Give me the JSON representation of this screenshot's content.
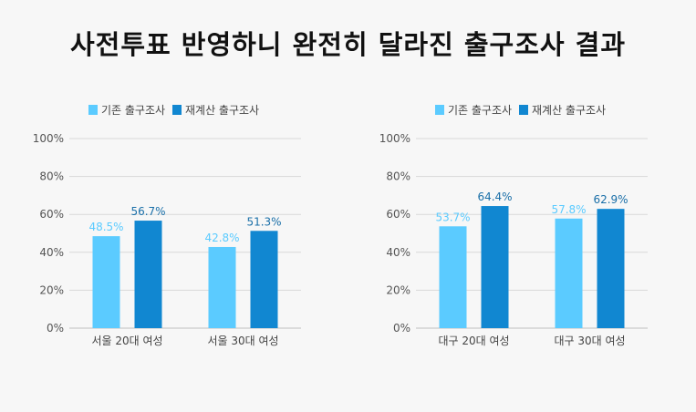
{
  "title": "사전투표 반영하니 완전히 달라진 출구조사 결과",
  "colors": {
    "original": "#5bcbff",
    "recount": "#1187d1"
  },
  "chart_data": [
    {
      "type": "bar",
      "categories": [
        "서울 20대 여성",
        "서울 30대 여성"
      ],
      "series": [
        {
          "name": "기존 출구조사",
          "values": [
            48.5,
            42.8
          ],
          "labels": [
            "48.5%",
            "42.8%"
          ]
        },
        {
          "name": "재계산 출구조사",
          "values": [
            56.7,
            51.3
          ],
          "labels": [
            "56.7%",
            "51.3%"
          ]
        }
      ],
      "yticks": [
        "0%",
        "20%",
        "40%",
        "60%",
        "80%",
        "100%"
      ],
      "ylim": [
        0,
        100
      ],
      "legend": "top-left",
      "grid": true
    },
    {
      "type": "bar",
      "categories": [
        "대구 20대 여성",
        "대구 30대 여성"
      ],
      "series": [
        {
          "name": "기존 출구조사",
          "values": [
            53.7,
            57.8
          ],
          "labels": [
            "53.7%",
            "57.8%"
          ]
        },
        {
          "name": "재계산 출구조사",
          "values": [
            64.4,
            62.9
          ],
          "labels": [
            "64.4%",
            "62.9%"
          ]
        }
      ],
      "yticks": [
        "0%",
        "20%",
        "40%",
        "60%",
        "80%",
        "100%"
      ],
      "ylim": [
        0,
        100
      ],
      "legend": "top-left",
      "grid": true
    }
  ]
}
